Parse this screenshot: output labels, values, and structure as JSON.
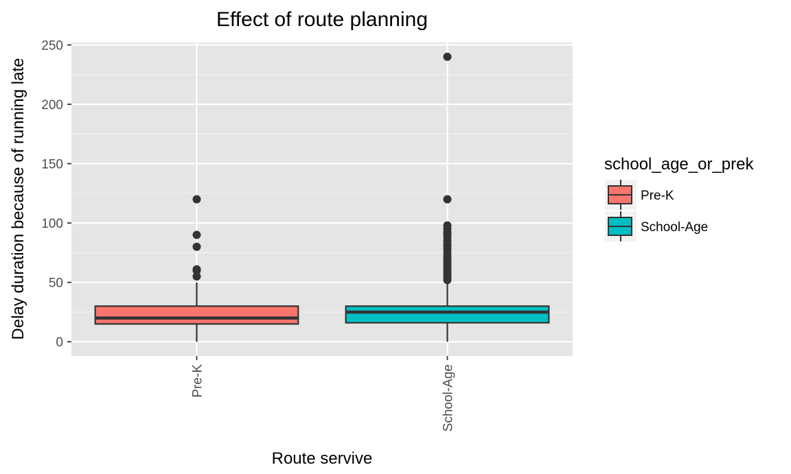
{
  "chart_data": {
    "type": "boxplot",
    "title": "Effect of route planning",
    "xlabel": "Route servive",
    "ylabel": "Delay duration because of running late",
    "ylim": [
      -12,
      252
    ],
    "yticks": [
      0,
      50,
      100,
      150,
      200,
      250
    ],
    "categories": [
      "Pre-K",
      "School-Age"
    ],
    "legend": {
      "title": "school_age_or_prek",
      "position": "right",
      "entries": [
        "Pre-K",
        "School-Age"
      ]
    },
    "colors": {
      "Pre-K": "#F8766D",
      "School-Age": "#00BFC4",
      "panel": "#E5E5E5",
      "grid": "#FFFFFF"
    },
    "grid": true,
    "boxes": [
      {
        "category": "Pre-K",
        "min": 0,
        "q1": 15,
        "median": 20,
        "q3": 30,
        "max": 50,
        "outliers": [
          55,
          60,
          61,
          80,
          90,
          120
        ]
      },
      {
        "category": "School-Age",
        "min": 0,
        "q1": 16,
        "median": 25,
        "q3": 30,
        "max": 50,
        "outliers": [
          52,
          54,
          56,
          58,
          60,
          62,
          64,
          66,
          68,
          70,
          72,
          75,
          78,
          80,
          82,
          85,
          88,
          90,
          92,
          95,
          98,
          120,
          240
        ]
      }
    ]
  }
}
